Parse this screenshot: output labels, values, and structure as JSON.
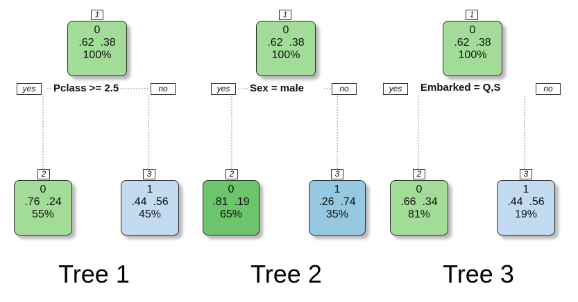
{
  "colors": {
    "green_light": "#a3dc98",
    "green_dark": "#6cc46b",
    "blue_light": "#c3dbf0",
    "blue_mid": "#96c8e2",
    "border": "#2b2b2b",
    "link": "#8a8a8a"
  },
  "trees": [
    {
      "caption": "Tree 1",
      "split": "Pclass >= 2.5",
      "yes_label": "yes",
      "no_label": "no",
      "root": {
        "id": "1",
        "class": "0",
        "probs": ".62  .38",
        "pct": "100%",
        "color": "green_light"
      },
      "left": {
        "id": "2",
        "class": "0",
        "probs": ".76  .24",
        "pct": "55%",
        "color": "green_light"
      },
      "right": {
        "id": "3",
        "class": "1",
        "probs": ".44  .56",
        "pct": "45%",
        "color": "blue_light"
      }
    },
    {
      "caption": "Tree 2",
      "split": "Sex = male",
      "yes_label": "yes",
      "no_label": "no",
      "root": {
        "id": "1",
        "class": "0",
        "probs": ".62  .38",
        "pct": "100%",
        "color": "green_light"
      },
      "left": {
        "id": "2",
        "class": "0",
        "probs": ".81  .19",
        "pct": "65%",
        "color": "green_dark"
      },
      "right": {
        "id": "3",
        "class": "1",
        "probs": ".26  .74",
        "pct": "35%",
        "color": "blue_mid"
      }
    },
    {
      "caption": "Tree 3",
      "split": "Embarked = Q,S",
      "yes_label": "yes",
      "no_label": "no",
      "root": {
        "id": "1",
        "class": "0",
        "probs": ".62  .38",
        "pct": "100%",
        "color": "green_light"
      },
      "left": {
        "id": "2",
        "class": "0",
        "probs": ".66  .34",
        "pct": "81%",
        "color": "green_light"
      },
      "right": {
        "id": "3",
        "class": "1",
        "probs": ".44  .56",
        "pct": "19%",
        "color": "blue_light"
      }
    }
  ]
}
